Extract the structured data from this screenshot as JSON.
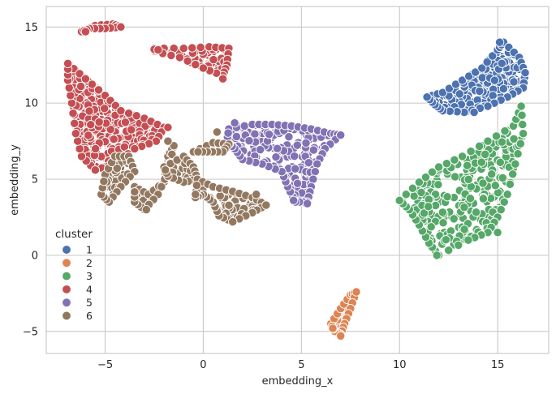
{
  "chart_data": {
    "type": "scatter",
    "title": "",
    "xlabel": "embedding_x",
    "ylabel": "embedding_y",
    "xlim": [
      -8.0,
      17.6
    ],
    "ylim": [
      -6.45,
      16.35
    ],
    "xticks": [
      -5,
      0,
      5,
      10,
      15
    ],
    "yticks": [
      -5,
      0,
      5,
      10,
      15
    ],
    "xtick_labels": [
      "−5",
      "0",
      "5",
      "10",
      "15"
    ],
    "ytick_labels": [
      "−5",
      "0",
      "5",
      "10",
      "15"
    ],
    "grid": true,
    "legend": {
      "title": "cluster",
      "placement": "lower-left",
      "entries": [
        "1",
        "2",
        "3",
        "4",
        "5",
        "6"
      ]
    },
    "series": [
      {
        "name": "1",
        "color": "#4c72b0",
        "regions": [
          {
            "polygon": [
              [
                11.4,
                10.4
              ],
              [
                12.2,
                10.7
              ],
              [
                13.2,
                11.5
              ],
              [
                14.2,
                12.3
              ],
              [
                15.0,
                13.5
              ],
              [
                15.3,
                14.0
              ],
              [
                16.1,
                13.0
              ],
              [
                16.4,
                12.0
              ],
              [
                16.3,
                11.0
              ],
              [
                15.5,
                10.4
              ],
              [
                14.5,
                9.8
              ],
              [
                13.3,
                9.4
              ],
              [
                12.2,
                9.5
              ],
              [
                11.8,
                9.9
              ]
            ],
            "count": 190
          }
        ],
        "points": [
          [
            15.1,
            14.0
          ],
          [
            11.4,
            10.4
          ],
          [
            13.8,
            9.4
          ],
          [
            16.4,
            12.0
          ]
        ]
      },
      {
        "name": "2",
        "color": "#dd8452",
        "regions": [
          {
            "polygon": [
              [
                6.5,
                -4.5
              ],
              [
                7.0,
                -3.5
              ],
              [
                7.5,
                -2.6
              ],
              [
                7.8,
                -2.4
              ],
              [
                7.5,
                -3.5
              ],
              [
                7.2,
                -4.5
              ],
              [
                7.0,
                -5.2
              ],
              [
                6.7,
                -5.0
              ]
            ],
            "count": 45
          }
        ],
        "points": [
          [
            7.8,
            -2.4
          ],
          [
            7.0,
            -5.3
          ],
          [
            6.6,
            -4.8
          ]
        ]
      },
      {
        "name": "3",
        "color": "#55a868",
        "regions": [
          {
            "polygon": [
              [
                10.0,
                3.6
              ],
              [
                11.0,
                4.8
              ],
              [
                12.0,
                5.8
              ],
              [
                13.2,
                6.5
              ],
              [
                14.5,
                7.5
              ],
              [
                15.8,
                8.5
              ],
              [
                16.2,
                9.8
              ],
              [
                16.3,
                8.0
              ],
              [
                15.9,
                6.0
              ],
              [
                15.5,
                4.0
              ],
              [
                15.0,
                2.5
              ],
              [
                14.5,
                1.5
              ],
              [
                13.5,
                1.0
              ],
              [
                12.0,
                0.0
              ],
              [
                11.5,
                0.8
              ],
              [
                11.0,
                2.0
              ],
              [
                10.5,
                3.0
              ]
            ],
            "count": 260
          }
        ],
        "points": [
          [
            10.0,
            3.6
          ],
          [
            11.9,
            0.0
          ],
          [
            16.2,
            9.8
          ],
          [
            15.0,
            1.5
          ]
        ]
      },
      {
        "name": "4",
        "color": "#c44e52",
        "regions": [
          {
            "polygon": [
              [
                -6.9,
                12.6
              ],
              [
                -6.0,
                11.6
              ],
              [
                -5.0,
                10.5
              ],
              [
                -4.2,
                9.5
              ],
              [
                -3.0,
                9.0
              ],
              [
                -2.0,
                8.4
              ],
              [
                -2.4,
                7.5
              ],
              [
                -3.5,
                7.0
              ],
              [
                -4.5,
                6.0
              ],
              [
                -5.5,
                5.6
              ],
              [
                -6.2,
                6.5
              ],
              [
                -6.5,
                8.0
              ],
              [
                -6.7,
                10.0
              ],
              [
                -6.9,
                11.5
              ]
            ],
            "count": 300
          },
          {
            "polygon": [
              [
                -2.5,
                13.6
              ],
              [
                -1.0,
                13.6
              ],
              [
                0.3,
                13.7
              ],
              [
                1.3,
                13.6
              ],
              [
                1.2,
                12.5
              ],
              [
                1.0,
                11.8
              ],
              [
                0.0,
                12.3
              ],
              [
                -1.2,
                13.0
              ],
              [
                -2.5,
                13.4
              ]
            ],
            "count": 60
          },
          {
            "polygon": [
              [
                -6.2,
                14.7
              ],
              [
                -5.5,
                15.1
              ],
              [
                -4.6,
                15.2
              ],
              [
                -4.2,
                15.0
              ],
              [
                -5.0,
                14.9
              ],
              [
                -5.8,
                14.9
              ]
            ],
            "count": 14
          }
        ],
        "points": [
          [
            -6.9,
            12.6
          ],
          [
            -2.3,
            13.5
          ],
          [
            1.0,
            11.6
          ],
          [
            -6.0,
            14.7
          ],
          [
            -4.2,
            15.0
          ],
          [
            -5.5,
            5.6
          ],
          [
            -1.8,
            8.4
          ]
        ]
      },
      {
        "name": "5",
        "color": "#8172b3",
        "regions": [
          {
            "polygon": [
              [
                1.3,
                8.3
              ],
              [
                2.5,
                8.6
              ],
              [
                3.5,
                8.6
              ],
              [
                4.5,
                8.5
              ],
              [
                5.5,
                8.3
              ],
              [
                6.5,
                8.0
              ],
              [
                7.0,
                7.9
              ],
              [
                6.2,
                7.0
              ],
              [
                5.8,
                6.0
              ],
              [
                5.5,
                4.5
              ],
              [
                5.3,
                3.5
              ],
              [
                4.7,
                3.5
              ],
              [
                4.3,
                4.5
              ],
              [
                4.0,
                5.5
              ],
              [
                3.0,
                6.0
              ],
              [
                2.0,
                6.3
              ],
              [
                1.6,
                7.0
              ],
              [
                1.2,
                7.5
              ]
            ],
            "count": 170
          }
        ],
        "points": [
          [
            1.6,
            8.7
          ],
          [
            7.0,
            7.9
          ],
          [
            5.3,
            3.4
          ],
          [
            4.6,
            3.6
          ]
        ]
      },
      {
        "name": "6",
        "color": "#937860",
        "regions": [
          {
            "polygon": [
              [
                -5.0,
                5.3
              ],
              [
                -4.5,
                6.5
              ],
              [
                -3.8,
                6.5
              ],
              [
                -3.5,
                5.5
              ],
              [
                -4.2,
                4.5
              ],
              [
                -4.8,
                3.5
              ],
              [
                -5.2,
                4.0
              ]
            ],
            "count": 40
          },
          {
            "polygon": [
              [
                -3.5,
                4.5
              ],
              [
                -2.8,
                4.0
              ],
              [
                -2.0,
                4.8
              ],
              [
                -1.8,
                6.5
              ],
              [
                -1.5,
                7.2
              ],
              [
                -1.8,
                5.5
              ],
              [
                -2.3,
                4.0
              ],
              [
                -3.0,
                3.0
              ],
              [
                -3.5,
                3.5
              ]
            ],
            "count": 45
          },
          {
            "polygon": [
              [
                -2.0,
                5.8
              ],
              [
                -1.0,
                6.5
              ],
              [
                -0.5,
                5.8
              ],
              [
                -0.3,
                5.0
              ],
              [
                -1.0,
                4.8
              ],
              [
                -1.8,
                5.2
              ]
            ],
            "count": 25
          },
          {
            "polygon": [
              [
                -0.3,
                5.0
              ],
              [
                0.5,
                4.5
              ],
              [
                1.5,
                4.2
              ],
              [
                2.5,
                3.8
              ],
              [
                3.2,
                3.3
              ],
              [
                2.5,
                2.8
              ],
              [
                1.5,
                2.2
              ],
              [
                0.8,
                2.6
              ],
              [
                0.5,
                3.5
              ],
              [
                0.0,
                4.0
              ],
              [
                -0.4,
                3.8
              ]
            ],
            "count": 60
          },
          {
            "polygon": [
              [
                -0.5,
                6.8
              ],
              [
                0.5,
                7.4
              ],
              [
                1.3,
                7.3
              ],
              [
                1.0,
                6.8
              ],
              [
                0.2,
                6.8
              ]
            ],
            "count": 14
          }
        ],
        "points": [
          [
            -1.8,
            7.5
          ],
          [
            0.7,
            8.1
          ],
          [
            1.5,
            2.2
          ],
          [
            -2.9,
            3.0
          ],
          [
            3.2,
            3.3
          ],
          [
            -0.4,
            4.0
          ],
          [
            2.7,
            4.0
          ]
        ]
      }
    ]
  }
}
